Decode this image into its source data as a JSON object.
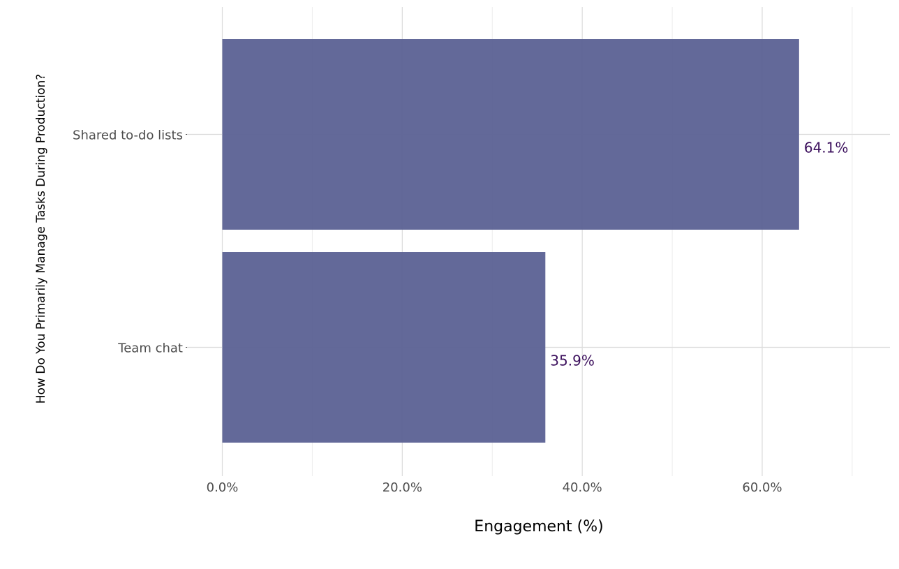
{
  "chart_data": {
    "type": "bar",
    "orientation": "horizontal",
    "categories": [
      "Shared to-do lists",
      "Team chat"
    ],
    "values": [
      64.1,
      35.9
    ],
    "value_labels": [
      "64.1%",
      "35.9%"
    ],
    "xlabel": "Engagement (%)",
    "ylabel": "How Do You Primarily Manage Tasks During Production?",
    "xlim": [
      0,
      74
    ],
    "x_ticks": [
      0,
      20,
      40,
      60
    ],
    "x_tick_labels": [
      "0.0%",
      "20.0%",
      "40.0%",
      "60.0%"
    ],
    "grid": true,
    "legend": false,
    "colors": {
      "bar": "#5b6194",
      "value_label": "#3b0f5c",
      "tick_label": "#4d4d4d",
      "axis_title": "#000000",
      "grid_major": "#dcdcdc",
      "grid_minor": "#ececec"
    }
  }
}
